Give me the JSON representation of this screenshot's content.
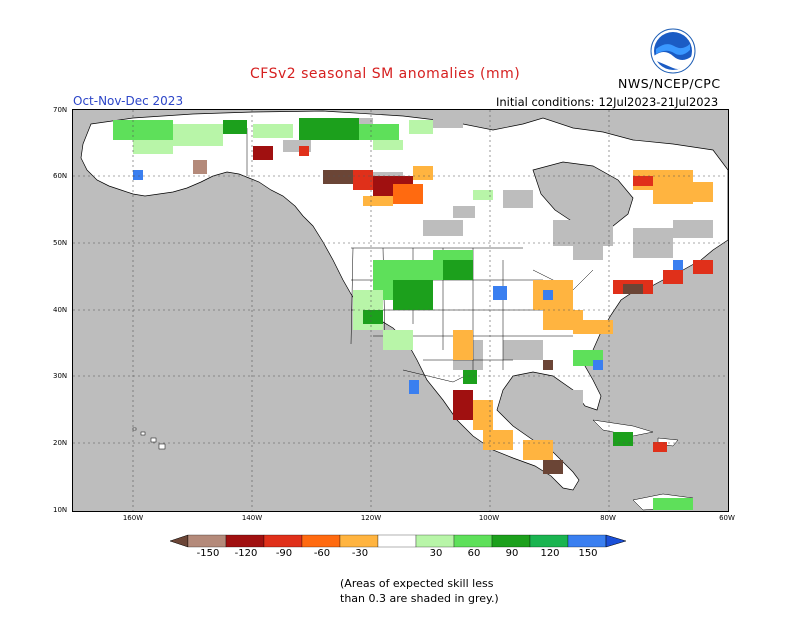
{
  "title": "CFSv2 seasonal SM anomalies (mm)",
  "season": "Oct-Nov-Dec 2023",
  "initial_conditions": {
    "label": "Initial conditions:",
    "value": "12Jul2023-21Jul2023"
  },
  "agency": "NWS/NCEP/CPC",
  "logo_text": "NOAA",
  "map": {
    "lat_labels": [
      "70N",
      "60N",
      "50N",
      "40N",
      "30N",
      "20N",
      "10N"
    ],
    "lon_labels": [
      "160W",
      "140W",
      "120W",
      "100W",
      "80W",
      "60W"
    ],
    "ocean_color": "#ffffff",
    "land_color": "#ffffff",
    "low_skill_color": "#bdbdbd"
  },
  "colorbar": {
    "labels": [
      "-150",
      "-120",
      "-90",
      "-60",
      "-30",
      "30",
      "60",
      "90",
      "120",
      "150"
    ],
    "colors": [
      "#6b4536",
      "#b48a7a",
      "#a01010",
      "#e0301a",
      "#ff6a10",
      "#ffb440",
      "#ffffff",
      "#b8f5a8",
      "#5ee05a",
      "#1ca01c",
      "#1ab450",
      "#3a7ff0",
      "#1a4fd8"
    ]
  },
  "note": {
    "line1": "(Areas of expected skill less",
    "line2": "than 0.3 are shaded in grey.)"
  }
}
